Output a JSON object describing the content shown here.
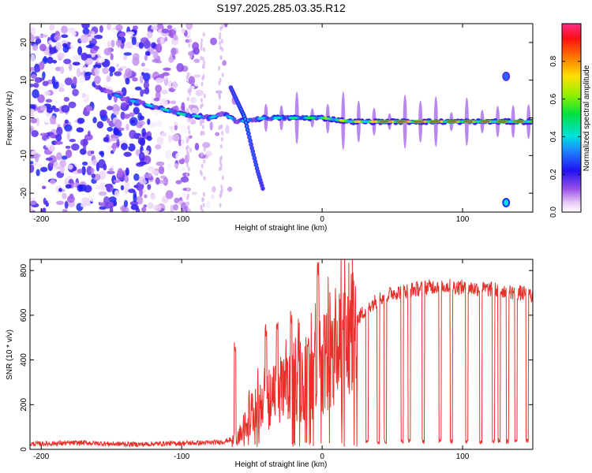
{
  "title": "S197.2025.285.03.35.R12",
  "chart_data": [
    {
      "type": "heatmap",
      "title": "S197.2025.285.03.35.R12",
      "xlabel": "Height of straight line (km)",
      "ylabel": "Frequency (Hz)",
      "xlim": [
        -208,
        150
      ],
      "ylim": [
        -25,
        25
      ],
      "xticks": [
        -200,
        -100,
        0,
        100
      ],
      "yticks": [
        -20,
        -10,
        0,
        10,
        20
      ],
      "xtick_labels": [
        "-200",
        "-100",
        "0",
        "100"
      ],
      "ytick_labels": [
        "-20",
        "-10",
        "0",
        "10",
        "20"
      ],
      "colorbar": {
        "label": "Normalized spectral amplitude",
        "range": [
          0,
          1
        ],
        "ticks": [
          0.0,
          0.2,
          0.4,
          0.6,
          0.8
        ],
        "tick_labels": [
          "0.0",
          "0.2",
          "0.4",
          "0.6",
          "0.8"
        ],
        "colormap": "white-purple-blue-cyan-green-yellow-red-magenta"
      },
      "ridge": {
        "name": "main spectral line",
        "x": [
          -160,
          -140,
          -120,
          -100,
          -80,
          -70,
          -60,
          -40,
          -20,
          0,
          20,
          40,
          60,
          80,
          100,
          120,
          150
        ],
        "frequency": [
          8,
          5,
          3,
          1,
          0,
          1,
          -1,
          0,
          0,
          0,
          -1,
          -1,
          -1,
          -1,
          -1,
          -1,
          -1
        ],
        "amplitude": [
          0.25,
          0.3,
          0.35,
          0.4,
          0.35,
          0.3,
          0.35,
          0.35,
          0.4,
          0.5,
          0.6,
          0.65,
          0.7,
          0.75,
          0.75,
          0.7,
          0.6
        ]
      },
      "branch": {
        "name": "secondary descending branch",
        "x": [
          -65,
          -55,
          -50,
          -46,
          -42
        ],
        "frequency": [
          8,
          0,
          -8,
          -14,
          -19
        ],
        "amplitude": [
          0.3,
          0.35,
          0.3,
          0.3,
          0.25
        ]
      },
      "isolated_spots": [
        {
          "x": 131,
          "frequency": 11,
          "amplitude": 0.25
        },
        {
          "x": 131,
          "frequency": -22.5,
          "amplitude": 0.35
        }
      ],
      "noise_region": {
        "x_from": -208,
        "x_to": -70,
        "amplitude_max": 0.25
      }
    },
    {
      "type": "line",
      "xlabel": "Height of straight line (km)",
      "ylabel": "SNR (10 * v/v)",
      "xlim": [
        -208,
        150
      ],
      "ylim": [
        0,
        850
      ],
      "xticks": [
        -200,
        -100,
        0,
        100
      ],
      "yticks": [
        0,
        200,
        400,
        600,
        800
      ],
      "xtick_labels": [
        "-200",
        "-100",
        "0",
        "100"
      ],
      "ytick_labels": [
        "0",
        "200",
        "400",
        "600",
        "800"
      ],
      "color": "#e8302a",
      "series": [
        {
          "name": "SNR",
          "x": [
            -208,
            -190,
            -170,
            -150,
            -130,
            -110,
            -90,
            -80,
            -70,
            -65,
            -60,
            -55,
            -50,
            -45,
            -40,
            -35,
            -30,
            -25,
            -20,
            -15,
            -10,
            -5,
            -2,
            0,
            5,
            10,
            15,
            20,
            25,
            30,
            35,
            40,
            50,
            60,
            70,
            80,
            90,
            100,
            110,
            120,
            130,
            140,
            150
          ],
          "values": [
            20,
            22,
            25,
            20,
            18,
            22,
            24,
            25,
            30,
            40,
            60,
            120,
            180,
            210,
            230,
            260,
            290,
            300,
            320,
            340,
            360,
            380,
            395,
            410,
            440,
            470,
            500,
            540,
            580,
            620,
            650,
            670,
            700,
            710,
            720,
            730,
            730,
            725,
            720,
            715,
            710,
            700,
            690
          ]
        }
      ],
      "spikes": {
        "description": "narrow excursions above the baseline",
        "x": [
          -62,
          -40,
          -32,
          -22,
          -10,
          -3
        ],
        "values": [
          480,
          560,
          580,
          620,
          500,
          850
        ]
      },
      "dropouts": {
        "description": "narrow drops of SNR to near zero",
        "x": [
          32,
          40,
          45,
          57,
          62,
          72,
          84,
          92,
          103,
          113,
          122,
          126,
          132,
          138,
          146
        ],
        "values": [
          40,
          40,
          40,
          40,
          40,
          40,
          40,
          40,
          40,
          40,
          40,
          40,
          40,
          40,
          40
        ]
      }
    }
  ]
}
